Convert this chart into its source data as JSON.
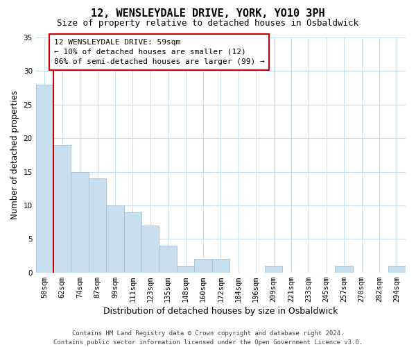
{
  "title": "12, WENSLEYDALE DRIVE, YORK, YO10 3PH",
  "subtitle": "Size of property relative to detached houses in Osbaldwick",
  "xlabel": "Distribution of detached houses by size in Osbaldwick",
  "ylabel": "Number of detached properties",
  "bar_labels": [
    "50sqm",
    "62sqm",
    "74sqm",
    "87sqm",
    "99sqm",
    "111sqm",
    "123sqm",
    "135sqm",
    "148sqm",
    "160sqm",
    "172sqm",
    "184sqm",
    "196sqm",
    "209sqm",
    "221sqm",
    "233sqm",
    "245sqm",
    "257sqm",
    "270sqm",
    "282sqm",
    "294sqm"
  ],
  "bar_values": [
    28,
    19,
    15,
    14,
    10,
    9,
    7,
    4,
    1,
    2,
    2,
    0,
    0,
    1,
    0,
    0,
    0,
    1,
    0,
    0,
    1
  ],
  "bar_color": "#c8dff0",
  "bar_edge_color": "#a0c0dc",
  "highlight_line_color": "#cc0000",
  "annotation_text": "12 WENSLEYDALE DRIVE: 59sqm\n← 10% of detached houses are smaller (12)\n86% of semi-detached houses are larger (99) →",
  "annotation_box_color": "#ffffff",
  "annotation_box_edge_color": "#cc0000",
  "ylim": [
    0,
    35
  ],
  "yticks": [
    0,
    5,
    10,
    15,
    20,
    25,
    30,
    35
  ],
  "footer_text": "Contains HM Land Registry data © Crown copyright and database right 2024.\nContains public sector information licensed under the Open Government Licence v3.0.",
  "bg_color": "#ffffff",
  "grid_color": "#c8dff0",
  "title_fontsize": 11,
  "subtitle_fontsize": 9,
  "xlabel_fontsize": 9,
  "ylabel_fontsize": 8.5,
  "tick_fontsize": 7.5,
  "annotation_fontsize": 8,
  "footer_fontsize": 6.5
}
